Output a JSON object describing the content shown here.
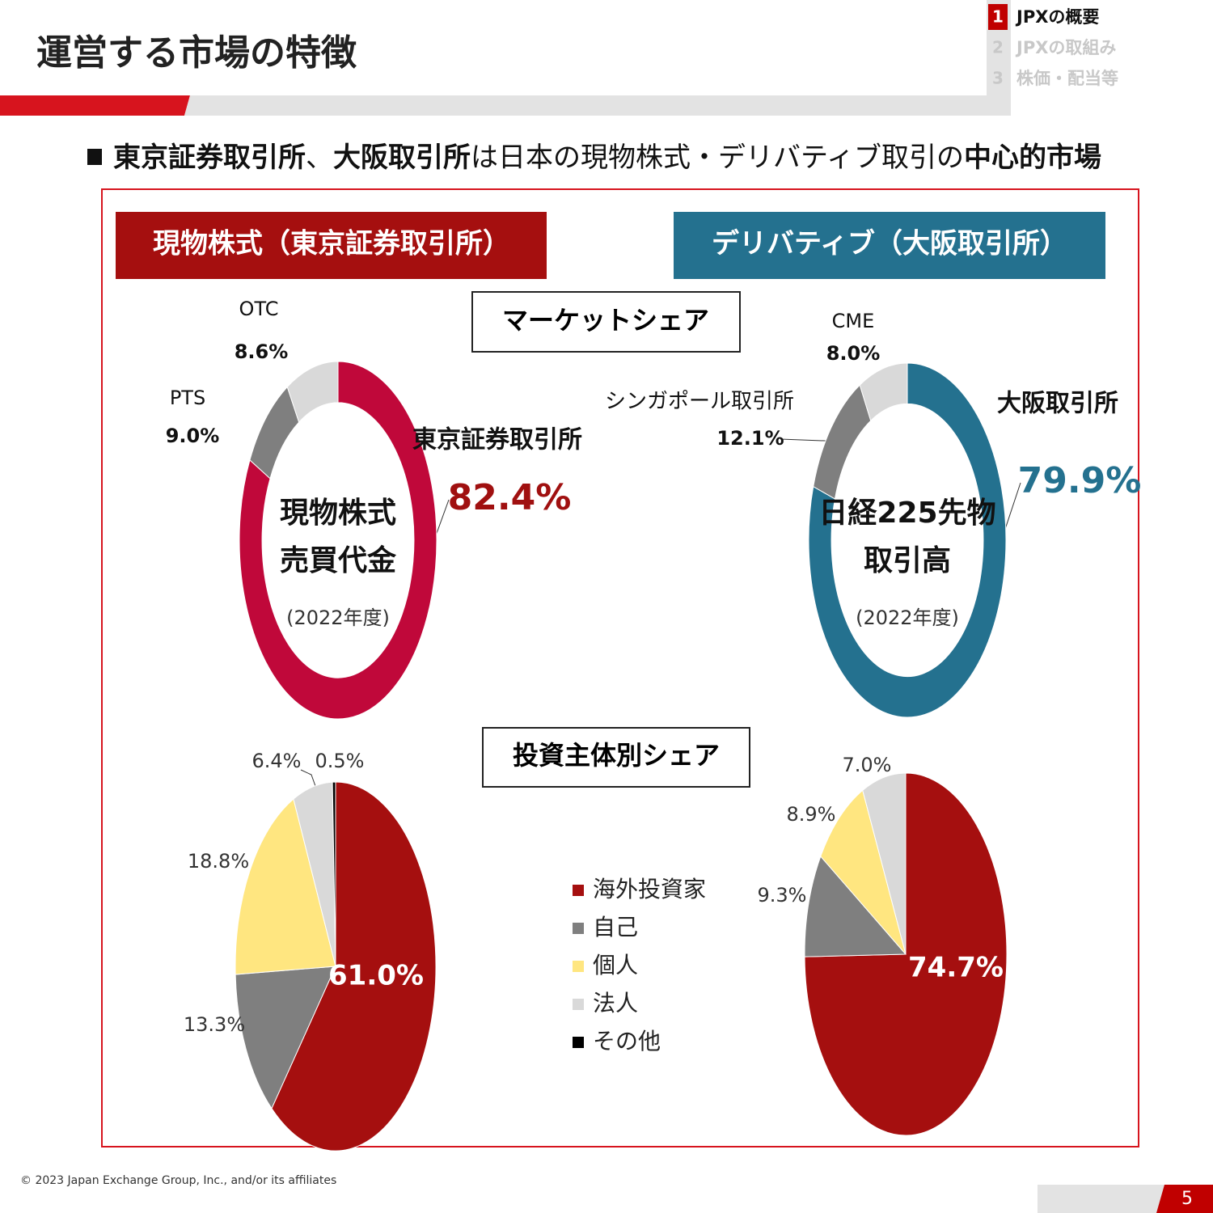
{
  "header": {
    "title": "運営する市場の特徴",
    "nav": [
      {
        "number": 1,
        "label": "JPXの概要"
      },
      {
        "number": 2,
        "label": "JPXの取組み"
      },
      {
        "number": 3,
        "label": "株価・配当等"
      }
    ]
  },
  "headline": [
    {
      "text": "東京証券取引所",
      "bold": true
    },
    {
      "text": "、",
      "bold": false
    },
    {
      "text": "大阪取引所",
      "bold": true
    },
    {
      "text": "は日本の現物株式・デリバティブ取引の",
      "bold": false
    },
    {
      "text": "中心的市場",
      "bold": true
    }
  ],
  "sections": {
    "cash": "現物株式（東京証券取引所）",
    "derivatives": "デリバティブ（大阪取引所）",
    "market_share": "マーケットシェア",
    "investor_share": "投資主体別シェア"
  },
  "chart_data": [
    {
      "type": "donut",
      "center_label": [
        "現物株式",
        "売買代金"
      ],
      "note": "(2022年度)",
      "categories": [
        "東京証券取引所",
        "PTS",
        "OTC"
      ],
      "values": [
        82.4,
        9.0,
        8.6
      ],
      "value_labels": [
        "82.4%",
        "9.0%",
        "8.6%"
      ],
      "colors": [
        "#c0083a",
        "#7f7f7f",
        "#d9d9d9"
      ]
    },
    {
      "type": "donut",
      "center_label": [
        "日経225先物",
        "取引高"
      ],
      "note": "(2022年度)",
      "categories": [
        "大阪取引所",
        "シンガポール取引所",
        "CME"
      ],
      "values": [
        79.9,
        12.1,
        8.0
      ],
      "value_labels": [
        "79.9%",
        "12.1%",
        "8.0%"
      ],
      "colors": [
        "#24718f",
        "#7f7f7f",
        "#d9d9d9"
      ]
    },
    {
      "type": "pie",
      "legend": true,
      "categories": [
        "海外投資家",
        "自己",
        "個人",
        "法人",
        "その他"
      ],
      "values": [
        61.0,
        13.3,
        18.8,
        6.4,
        0.5
      ],
      "value_labels": [
        "61.0%",
        "13.3%",
        "18.8%",
        "6.4%",
        "0.5%"
      ],
      "colors": [
        "#a50f0f",
        "#7f7f7f",
        "#ffe680",
        "#d9d9d9",
        "#000000"
      ]
    },
    {
      "type": "pie",
      "values": [
        74.7,
        9.3,
        8.9,
        7.0
      ],
      "value_labels": [
        "74.7%",
        "9.3%",
        "8.9%",
        "7.0%"
      ],
      "colors": [
        "#a50f0f",
        "#7f7f7f",
        "#ffe680",
        "#d9d9d9"
      ]
    }
  ],
  "footer": {
    "copyright": "© 2023 Japan Exchange Group, Inc., and/or its affiliates",
    "page": 5
  }
}
